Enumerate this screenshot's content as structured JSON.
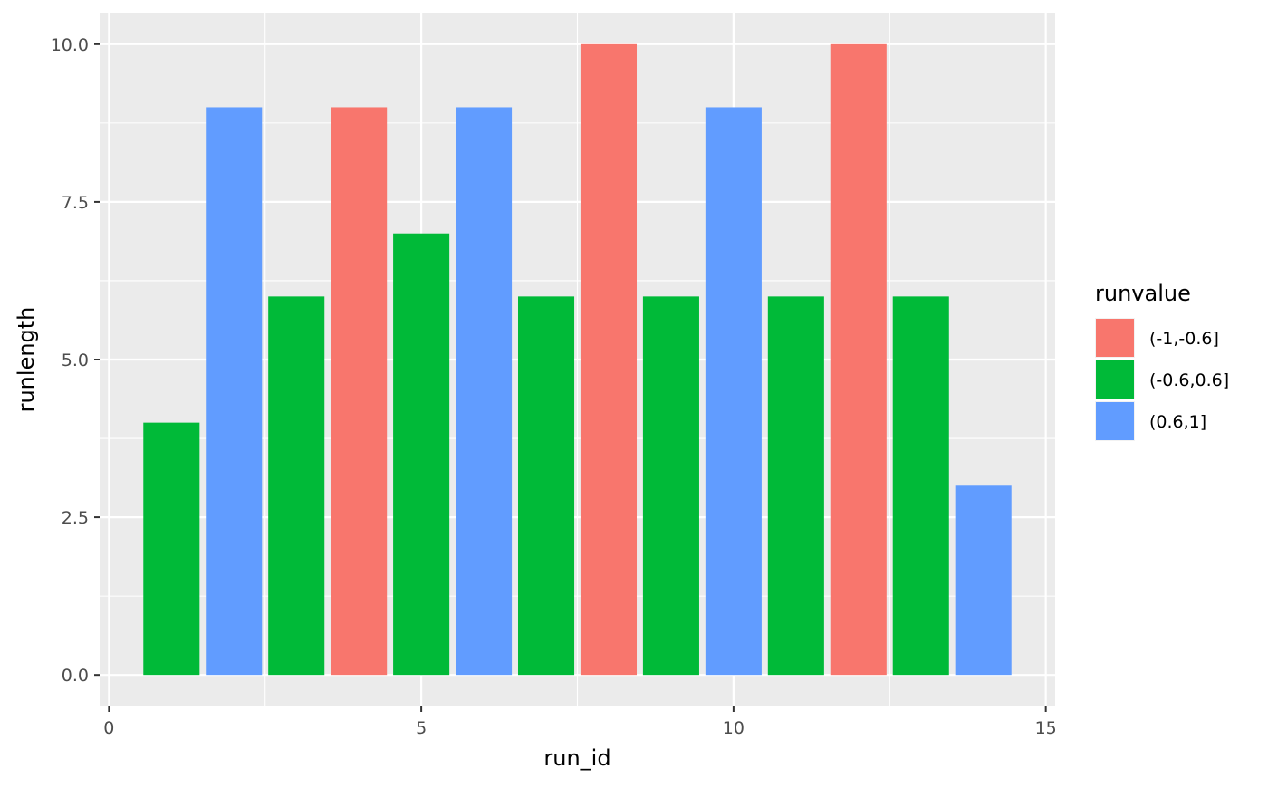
{
  "chart_data": {
    "type": "bar",
    "xlabel": "run_id",
    "ylabel": "runlength",
    "xlim": [
      -0.15,
      15.15
    ],
    "ylim": [
      -0.5,
      10.5
    ],
    "x_ticks": [
      0,
      5,
      10,
      15
    ],
    "x_tick_labels": [
      "0",
      "5",
      "10",
      "15"
    ],
    "y_ticks": [
      0,
      2.5,
      5,
      7.5,
      10
    ],
    "y_tick_labels": [
      "0.0",
      "2.5",
      "5.0",
      "7.5",
      "10.0"
    ],
    "grid": true,
    "legend": {
      "title": "runvalue",
      "position": "right",
      "entries": [
        {
          "label": "(-1,-0.6]",
          "color": "#F8766D"
        },
        {
          "label": "(-0.6,0.6]",
          "color": "#00BA38"
        },
        {
          "label": "(0.6,1]",
          "color": "#619CFF"
        }
      ]
    },
    "bars": [
      {
        "x": 1,
        "y": 4,
        "group": "(-0.6,0.6]"
      },
      {
        "x": 2,
        "y": 9,
        "group": "(0.6,1]"
      },
      {
        "x": 3,
        "y": 6,
        "group": "(-0.6,0.6]"
      },
      {
        "x": 4,
        "y": 9,
        "group": "(-1,-0.6]"
      },
      {
        "x": 5,
        "y": 7,
        "group": "(-0.6,0.6]"
      },
      {
        "x": 6,
        "y": 9,
        "group": "(0.6,1]"
      },
      {
        "x": 7,
        "y": 6,
        "group": "(-0.6,0.6]"
      },
      {
        "x": 8,
        "y": 10,
        "group": "(-1,-0.6]"
      },
      {
        "x": 9,
        "y": 6,
        "group": "(-0.6,0.6]"
      },
      {
        "x": 10,
        "y": 9,
        "group": "(0.6,1]"
      },
      {
        "x": 11,
        "y": 6,
        "group": "(-0.6,0.6]"
      },
      {
        "x": 12,
        "y": 10,
        "group": "(-1,-0.6]"
      },
      {
        "x": 13,
        "y": 6,
        "group": "(-0.6,0.6]"
      },
      {
        "x": 14,
        "y": 3,
        "group": "(0.6,1]"
      }
    ],
    "panel_background": "#EBEBEB",
    "grid_color": "#FFFFFF"
  }
}
